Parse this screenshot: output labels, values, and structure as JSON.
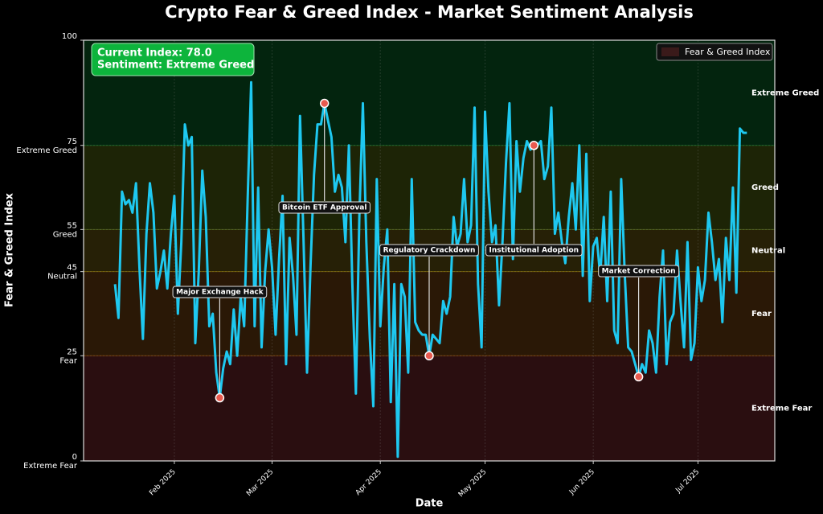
{
  "chart_data": {
    "type": "line",
    "title": "Crypto Fear & Greed Index - Market Sentiment Analysis",
    "xlabel": "Date",
    "ylabel": "Fear & Greed Index",
    "xlim": [
      -9,
      189
    ],
    "xticks": [
      {
        "value": 17,
        "label": "Feb 2025"
      },
      {
        "value": 45,
        "label": "Mar 2025"
      },
      {
        "value": 76,
        "label": "Apr 2025"
      },
      {
        "value": 106,
        "label": "May 2025"
      },
      {
        "value": 137,
        "label": "Jun 2025"
      },
      {
        "value": 167,
        "label": "Jul 2025"
      }
    ],
    "ylim": [
      0,
      100
    ],
    "yticks": [
      0,
      25,
      45,
      55,
      75,
      100
    ],
    "grid": true,
    "legend": "upper right",
    "zones": [
      {
        "from": 0,
        "to": 25,
        "label": "Extreme Fear",
        "color": "#ff4444",
        "fill": "#2a0e10"
      },
      {
        "from": 25,
        "to": 45,
        "label": "Fear",
        "color": "#ff8c00",
        "fill": "#2a1806"
      },
      {
        "from": 45,
        "to": 55,
        "label": "Neutral",
        "color": "#ffd700",
        "fill": "#262006"
      },
      {
        "from": 55,
        "to": 75,
        "label": "Greed",
        "color": "#9acd32",
        "fill": "#1d2406"
      },
      {
        "from": 75,
        "to": 100,
        "label": "Extreme Greed",
        "color": "#22cc44",
        "fill": "#03240e"
      }
    ],
    "info_box": [
      "Current Index: 78.0",
      "Sentiment: Extreme Greed"
    ],
    "annotations": [
      {
        "label": "Major Exchange Hack",
        "index": 30
      },
      {
        "label": "Bitcoin ETF Approval",
        "index": 60
      },
      {
        "label": "Regulatory Crackdown",
        "index": 90
      },
      {
        "label": "Institutional Adoption",
        "index": 120
      },
      {
        "label": "Market Correction",
        "index": 150
      }
    ],
    "series": [
      {
        "name": "Fear & Greed Index",
        "color": "#1ec8f0",
        "legend_color": "#3a1a1a",
        "values": [
          42,
          34,
          64,
          61,
          62,
          59,
          66,
          46,
          29,
          54,
          66,
          59,
          41,
          45,
          50,
          41,
          54,
          63,
          35,
          52,
          80,
          75,
          77,
          28,
          45,
          69,
          58,
          32,
          35,
          21,
          15,
          22,
          26,
          23,
          36,
          25,
          39,
          32,
          62,
          90,
          32,
          65,
          27,
          45,
          55,
          46,
          30,
          48,
          63,
          23,
          53,
          44,
          30,
          82,
          53,
          21,
          46,
          68,
          80,
          80,
          85,
          81,
          77,
          64,
          68,
          65,
          52,
          75,
          42,
          16,
          58,
          85,
          52,
          29,
          13,
          67,
          32,
          46,
          55,
          14,
          42,
          1,
          42,
          39,
          21,
          67,
          33,
          31,
          30,
          30,
          25,
          30,
          29,
          28,
          38,
          35,
          39,
          58,
          51,
          54,
          67,
          52,
          56,
          84,
          42,
          27,
          83,
          64,
          52,
          56,
          37,
          52,
          71,
          85,
          48,
          76,
          64,
          72,
          76,
          74,
          75,
          75,
          76,
          67,
          70,
          84,
          54,
          59,
          52,
          47,
          58,
          66,
          55,
          75,
          44,
          73,
          38,
          51,
          53,
          44,
          58,
          38,
          64,
          31,
          28,
          67,
          45,
          27,
          26,
          23,
          20,
          23,
          21,
          31,
          28,
          21,
          39,
          50,
          23,
          33,
          35,
          50,
          38,
          27,
          52,
          24,
          28,
          46,
          38,
          43,
          59,
          52,
          43,
          48,
          33,
          53,
          43,
          65,
          40,
          79,
          78,
          78
        ]
      }
    ]
  }
}
